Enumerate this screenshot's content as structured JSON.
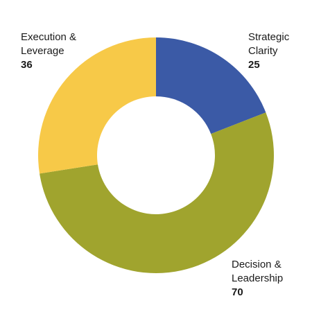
{
  "chart_data": {
    "type": "donut",
    "title": "",
    "slices": [
      {
        "label_line1": "Strategic",
        "label_line2": "Clarity",
        "value": 25,
        "color": "#3b5aa6"
      },
      {
        "label_line1": "Decision &",
        "label_line2": "Leadership",
        "value": 70,
        "color": "#a0a42e"
      },
      {
        "label_line1": "Execution &",
        "label_line2": "Leverage",
        "value": 36,
        "color": "#f7c948"
      }
    ],
    "legend": "none"
  }
}
